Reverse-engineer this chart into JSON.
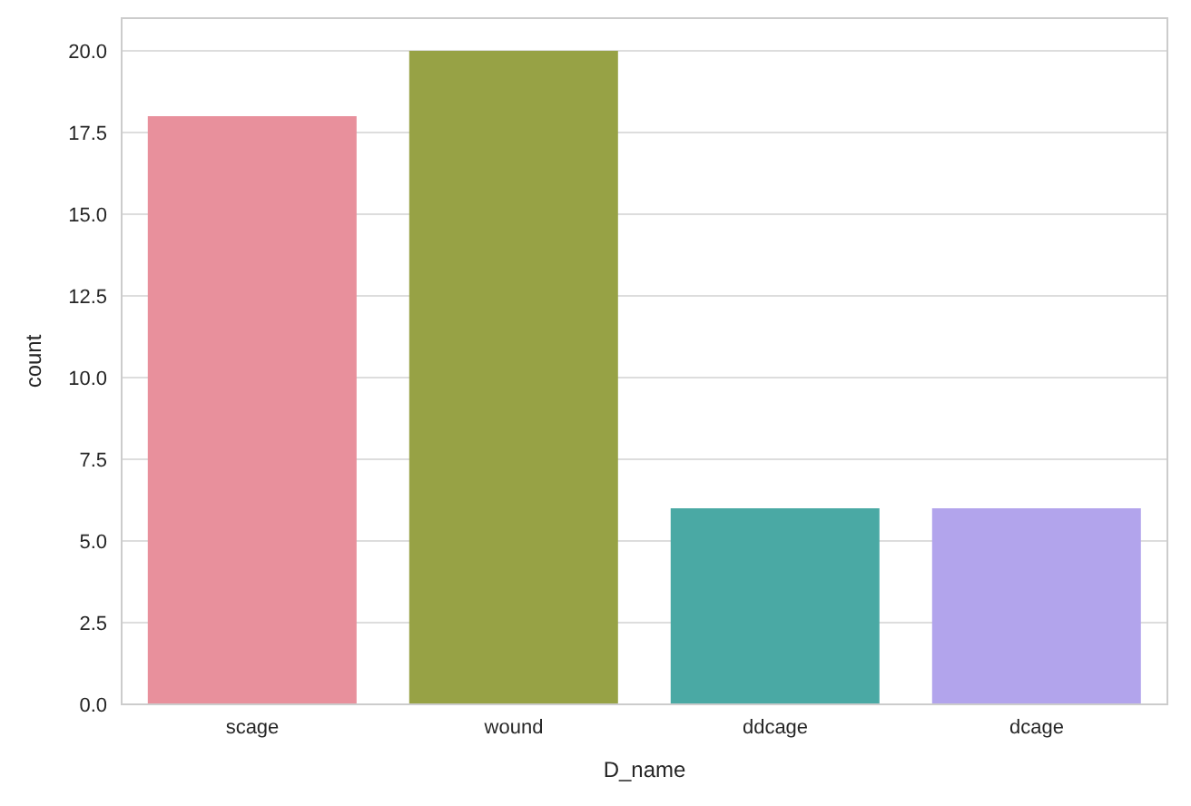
{
  "chart_data": {
    "type": "bar",
    "xlabel": "D_name",
    "ylabel": "count",
    "categories": [
      "scage",
      "wound",
      "ddcage",
      "dcage"
    ],
    "values": [
      18,
      20,
      6,
      6
    ],
    "colors": [
      "#e8909c",
      "#97a245",
      "#4aa9a4",
      "#b2a4ec"
    ],
    "ylim": [
      0,
      21
    ],
    "yticks": [
      {
        "value": 0,
        "label": "0.0"
      },
      {
        "value": 2.5,
        "label": "2.5"
      },
      {
        "value": 5,
        "label": "5.0"
      },
      {
        "value": 7.5,
        "label": "7.5"
      },
      {
        "value": 10,
        "label": "10.0"
      },
      {
        "value": 12.5,
        "label": "12.5"
      },
      {
        "value": 15,
        "label": "15.0"
      },
      {
        "value": 17.5,
        "label": "17.5"
      },
      {
        "value": 20,
        "label": "20.0"
      }
    ],
    "grid": "y",
    "legend": false
  }
}
